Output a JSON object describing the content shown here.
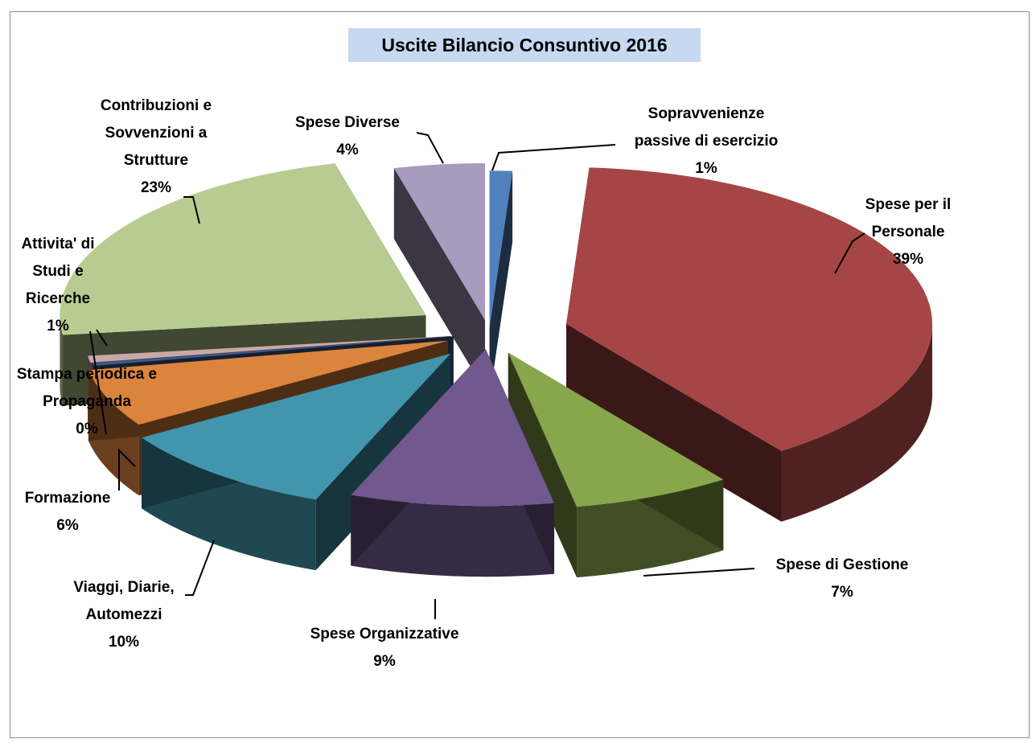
{
  "chart_data": {
    "type": "pie",
    "title": "Uscite Bilancio Consuntivo 2016",
    "slices": [
      {
        "name": "Sopravvenienze passive di esercizio",
        "lines": [
          "Sopravvenienze",
          "passive di esercizio"
        ],
        "percent_label": "1%",
        "value": 1,
        "color": "#4f81bd"
      },
      {
        "name": "Spese per il Personale",
        "lines": [
          "Spese per il",
          "Personale"
        ],
        "percent_label": "39%",
        "value": 39,
        "color": "#a64545"
      },
      {
        "name": "Spese di Gestione",
        "lines": [
          "Spese di Gestione"
        ],
        "percent_label": "7%",
        "value": 7,
        "color": "#88a64c"
      },
      {
        "name": "Spese Organizzative",
        "lines": [
          "Spese Organizzative"
        ],
        "percent_label": "9%",
        "value": 9,
        "color": "#71588f"
      },
      {
        "name": "Viaggi, Diarie, Automezzi",
        "lines": [
          "Viaggi, Diarie,",
          "Automezzi"
        ],
        "percent_label": "10%",
        "value": 10,
        "color": "#4196ad"
      },
      {
        "name": "Formazione",
        "lines": [
          "Formazione"
        ],
        "percent_label": "6%",
        "value": 6,
        "color": "#db843d"
      },
      {
        "name": "Stampa periodica e Propaganda",
        "lines": [
          "Stampa periodica e",
          "Propaganda"
        ],
        "percent_label": "0%",
        "value": 0.3,
        "color": "#3d5a8a"
      },
      {
        "name": "Attivita' di Studi e Ricerche",
        "lines": [
          "Attivita' di",
          "Studi e",
          "Ricerche"
        ],
        "percent_label": "1%",
        "value": 0.7,
        "color": "#c9a8a8"
      },
      {
        "name": "Contribuzioni e Sovvenzioni a Strutture",
        "lines": [
          "Contribuzioni e",
          "Sovvenzioni a",
          "Strutture"
        ],
        "percent_label": "23%",
        "value": 23,
        "color": "#b8cc91"
      },
      {
        "name": "Spese Diverse",
        "lines": [
          "Spese Diverse"
        ],
        "percent_label": "4%",
        "value": 4,
        "color": "#a99bbd"
      }
    ]
  }
}
